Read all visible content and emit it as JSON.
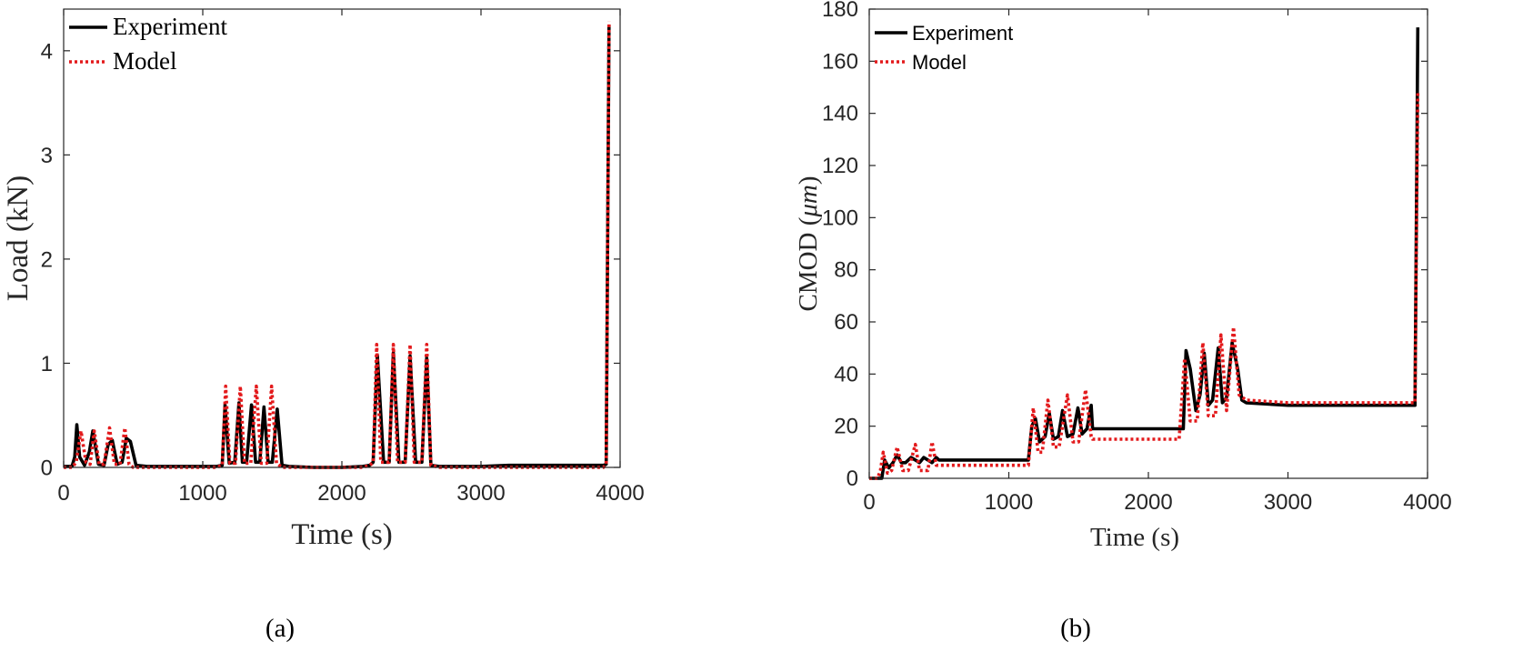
{
  "chart_data": [
    {
      "type": "line",
      "caption": "(a)",
      "xlabel": "Time (s)",
      "ylabel": "Load (kN)",
      "xlim": [
        0,
        4000
      ],
      "ylim": [
        0,
        4.4
      ],
      "xticks": [
        0,
        1000,
        2000,
        3000,
        4000
      ],
      "yticks": [
        0,
        1,
        2,
        3,
        4
      ],
      "legend": {
        "placement": "top-left",
        "entries": [
          "Experiment",
          "Model"
        ]
      },
      "grid": false,
      "series": [
        {
          "name": "Experiment",
          "style": "solid",
          "color": "#000000",
          "x": [
            0,
            60,
            80,
            95,
            115,
            150,
            185,
            210,
            250,
            290,
            320,
            350,
            385,
            420,
            450,
            480,
            520,
            600,
            800,
            1000,
            1100,
            1140,
            1160,
            1190,
            1230,
            1260,
            1285,
            1315,
            1350,
            1380,
            1410,
            1440,
            1470,
            1500,
            1535,
            1570,
            1620,
            1800,
            2000,
            2150,
            2200,
            2225,
            2255,
            2300,
            2340,
            2370,
            2410,
            2455,
            2490,
            2530,
            2575,
            2610,
            2640,
            2700,
            3000,
            3200,
            3500,
            3800,
            3880,
            3900,
            3920
          ],
          "y": [
            0.01,
            0.01,
            0.1,
            0.41,
            0.1,
            0.02,
            0.15,
            0.35,
            0.03,
            0.02,
            0.22,
            0.26,
            0.03,
            0.05,
            0.28,
            0.25,
            0.02,
            0.01,
            0.01,
            0.01,
            0.01,
            0.02,
            0.6,
            0.04,
            0.05,
            0.62,
            0.05,
            0.05,
            0.6,
            0.05,
            0.05,
            0.58,
            0.05,
            0.05,
            0.56,
            0.02,
            0.01,
            0.0,
            0.0,
            0.01,
            0.02,
            0.05,
            1.08,
            0.05,
            0.05,
            1.1,
            0.05,
            0.05,
            1.07,
            0.05,
            0.05,
            1.05,
            0.02,
            0.01,
            0.01,
            0.02,
            0.02,
            0.02,
            0.02,
            0.03,
            4.25
          ]
        },
        {
          "name": "Model",
          "style": "dotted",
          "color": "#e31a1c",
          "x": [
            0,
            60,
            90,
            125,
            160,
            190,
            220,
            255,
            290,
            330,
            365,
            405,
            440,
            470,
            500,
            600,
            800,
            1000,
            1100,
            1140,
            1165,
            1195,
            1235,
            1270,
            1300,
            1345,
            1385,
            1420,
            1460,
            1495,
            1530,
            1570,
            1620,
            1800,
            2000,
            2150,
            2200,
            2225,
            2250,
            2280,
            2340,
            2370,
            2400,
            2455,
            2490,
            2520,
            2575,
            2610,
            2640,
            2700,
            3000,
            3500,
            3800,
            3880,
            3900,
            3920
          ],
          "y": [
            0.0,
            0.0,
            0.05,
            0.35,
            0.05,
            0.03,
            0.35,
            0.03,
            0.03,
            0.38,
            0.03,
            0.03,
            0.38,
            0.03,
            0.0,
            0.0,
            0.0,
            0.0,
            0.0,
            0.02,
            0.78,
            0.04,
            0.04,
            0.78,
            0.04,
            0.04,
            0.78,
            0.04,
            0.04,
            0.78,
            0.04,
            0.0,
            0.0,
            0.0,
            0.0,
            0.0,
            0.02,
            0.05,
            1.18,
            0.05,
            0.05,
            1.18,
            0.05,
            0.05,
            1.18,
            0.05,
            0.05,
            1.18,
            0.02,
            0.0,
            0.0,
            0.0,
            0.0,
            0.0,
            0.03,
            4.28
          ]
        }
      ]
    },
    {
      "type": "line",
      "caption": "(b)",
      "xlabel": "Time (s)",
      "ylabel_text": "CMOD (",
      "ylabel_symbol": "μm",
      "ylabel_end": ")",
      "xlim": [
        0,
        4000
      ],
      "ylim": [
        0,
        180
      ],
      "xticks": [
        0,
        1000,
        2000,
        3000,
        4000
      ],
      "yticks": [
        0,
        20,
        40,
        60,
        80,
        100,
        120,
        140,
        160,
        180
      ],
      "legend": {
        "placement": "top-left",
        "entries": [
          "Experiment",
          "Model"
        ]
      },
      "grid": false,
      "series": [
        {
          "name": "Experiment",
          "style": "solid",
          "color": "#000000",
          "x": [
            0,
            60,
            75,
            90,
            110,
            140,
            170,
            200,
            230,
            260,
            300,
            330,
            360,
            390,
            420,
            450,
            480,
            500,
            600,
            800,
            1000,
            1100,
            1140,
            1165,
            1190,
            1220,
            1260,
            1290,
            1320,
            1355,
            1385,
            1420,
            1460,
            1495,
            1525,
            1560,
            1590,
            1600,
            1800,
            2000,
            2200,
            2220,
            2250,
            2270,
            2300,
            2340,
            2370,
            2400,
            2430,
            2460,
            2500,
            2530,
            2560,
            2600,
            2640,
            2670,
            2700,
            3000,
            3500,
            3800,
            3880,
            3910,
            3930
          ],
          "y": [
            0,
            0,
            0,
            0,
            7,
            4,
            6,
            9,
            6,
            6,
            8,
            7,
            6,
            8,
            7,
            6,
            8,
            7,
            7,
            7,
            7,
            7,
            7,
            20,
            23,
            14,
            16,
            25,
            15,
            16,
            26,
            16,
            17,
            27,
            17,
            19,
            28,
            19,
            19,
            19,
            19,
            19,
            19,
            49,
            42,
            26,
            32,
            48,
            28,
            30,
            50,
            29,
            31,
            52,
            42,
            30,
            29,
            28,
            28,
            28,
            28,
            28,
            173
          ]
        },
        {
          "name": "Model",
          "style": "dotted",
          "color": "#e31a1c",
          "x": [
            0,
            60,
            80,
            100,
            130,
            160,
            200,
            240,
            280,
            330,
            360,
            420,
            450,
            480,
            500,
            600,
            800,
            1000,
            1100,
            1140,
            1175,
            1210,
            1240,
            1280,
            1320,
            1360,
            1420,
            1460,
            1500,
            1550,
            1590,
            1600,
            1800,
            2000,
            2200,
            2220,
            2260,
            2300,
            2350,
            2390,
            2430,
            2480,
            2520,
            2560,
            2610,
            2650,
            2700,
            3000,
            3500,
            3800,
            3880,
            3910,
            3930
          ],
          "y": [
            0,
            0,
            3,
            10,
            2,
            3,
            12,
            3,
            3,
            13,
            3,
            3,
            14,
            5,
            5,
            5,
            5,
            5,
            5,
            5,
            27,
            10,
            10,
            30,
            12,
            12,
            32,
            14,
            14,
            34,
            16,
            15,
            15,
            15,
            15,
            15,
            46,
            22,
            22,
            52,
            24,
            24,
            55,
            26,
            58,
            32,
            30,
            29,
            29,
            29,
            29,
            29,
            148
          ]
        }
      ]
    }
  ]
}
